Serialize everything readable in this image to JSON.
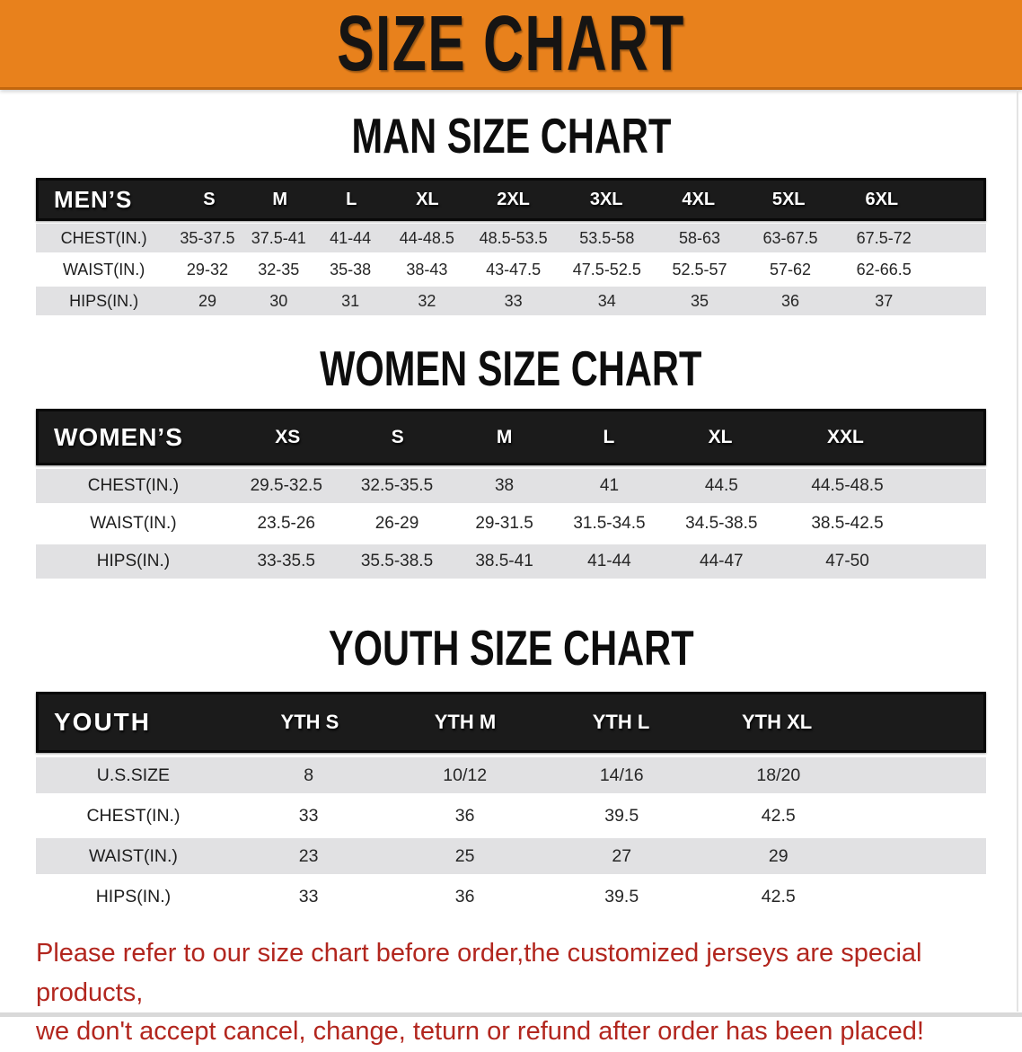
{
  "banner": {
    "title": "SIZE CHART"
  },
  "men": {
    "heading": "MAN SIZE CHART",
    "table": {
      "label": "MEN’S",
      "columns": [
        "S",
        "M",
        "L",
        "XL",
        "2XL",
        "3XL",
        "4XL",
        "5XL",
        "6XL"
      ],
      "rows": [
        {
          "label": "CHEST(IN.)",
          "values": [
            "35-37.5",
            "37.5-41",
            "41-44",
            "44-48.5",
            "48.5-53.5",
            "53.5-58",
            "58-63",
            "63-67.5",
            "67.5-72"
          ]
        },
        {
          "label": "WAIST(IN.)",
          "values": [
            "29-32",
            "32-35",
            "35-38",
            "38-43",
            "43-47.5",
            "47.5-52.5",
            "52.5-57",
            "57-62",
            "62-66.5"
          ]
        },
        {
          "label": "HIPS(IN.)",
          "values": [
            "29",
            "30",
            "31",
            "32",
            "33",
            "34",
            "35",
            "36",
            "37"
          ]
        }
      ]
    }
  },
  "women": {
    "heading": "WOMEN SIZE CHART",
    "table": {
      "label": "WOMEN’S",
      "columns": [
        "XS",
        "S",
        "M",
        "L",
        "XL",
        "XXL"
      ],
      "rows": [
        {
          "label": "CHEST(IN.)",
          "values": [
            "29.5-32.5",
            "32.5-35.5",
            "38",
            "41",
            "44.5",
            "44.5-48.5"
          ]
        },
        {
          "label": "WAIST(IN.)",
          "values": [
            "23.5-26",
            "26-29",
            "29-31.5",
            "31.5-34.5",
            "34.5-38.5",
            "38.5-42.5"
          ]
        },
        {
          "label": "HIPS(IN.)",
          "values": [
            "33-35.5",
            "35.5-38.5",
            "38.5-41",
            "41-44",
            "44-47",
            "47-50"
          ]
        }
      ]
    }
  },
  "youth": {
    "heading": "YOUTH SIZE CHART",
    "table": {
      "label": "YOUTH",
      "columns": [
        "YTH S",
        "YTH M",
        "YTH L",
        "YTH XL"
      ],
      "rows": [
        {
          "label": "U.S.SIZE",
          "values": [
            "8",
            "10/12",
            "14/16",
            "18/20"
          ]
        },
        {
          "label": "CHEST(IN.)",
          "values": [
            "33",
            "36",
            "39.5",
            "42.5"
          ]
        },
        {
          "label": "WAIST(IN.)",
          "values": [
            "23",
            "25",
            "27",
            "29"
          ]
        },
        {
          "label": "HIPS(IN.)",
          "values": [
            "33",
            "36",
            "39.5",
            "42.5"
          ]
        }
      ]
    }
  },
  "note": {
    "line1": "Please refer to our size chart before order,the customized jerseys are special products,",
    "line2": "we don't accept cancel, change, teturn or refund after order has been placed!"
  },
  "colors": {
    "banner_orange": "#E8811C",
    "header_black": "#1b1b1b",
    "row_gray": "#E1E1E3",
    "note_red": "#B2261E"
  }
}
